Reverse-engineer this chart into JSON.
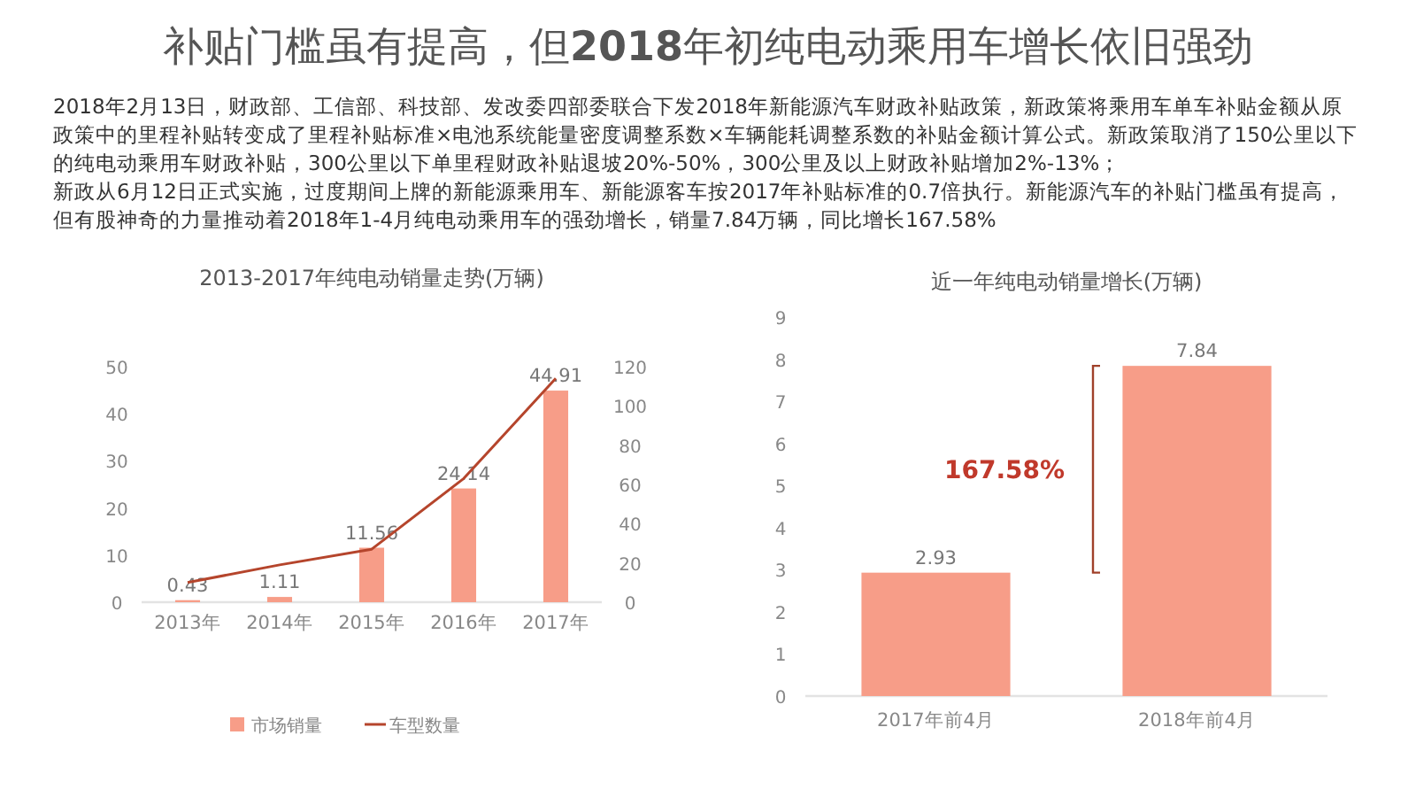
{
  "chart_data": [
    {
      "type": "other",
      "title": "补贴门槛虽有提高，但**2018**年初纯电动乘用车增长依旧强劲",
      "annotations": [
        "2018年2月13日，财政部、工信部、科技部、发改委四部委联合下发2018年新能源汽车财政补贴政策，新政策将乘用车单车补贴金额从原政策中的里程补贴转变成了里程补贴标准×电池系统能量密度调整系数×车辆能耗调整系数的补贴金额计算公式。新政策取消了150公里以下的纯电动乘用车财政补贴，300公里以下单里程财政补贴退坡20%-50%，300公里及以上财政补贴增加2%-13%；",
        "新政从6月12日正式实施，过度期间上牌的新能源乘用车、新能源客车按2017年补贴标准的0.7倍执行。新能源汽车的补贴门槛虽有提高，但有股神奇的力量推动着2018年1-4月纯电动乘用车的强劲增长，销量7.84万辆，同比增长167.58%"
      ]
    },
    {
      "type": "bar",
      "title": "2013-2017年纯电动销量走势(万辆)",
      "categories": [
        "2013年",
        "2014年",
        "2015年",
        "2016年",
        "2017年"
      ],
      "series": [
        {
          "name": "市场销量",
          "type": "bar",
          "color": "#f79d88",
          "values": [
            0.43,
            1.11,
            11.56,
            24.14,
            44.91
          ],
          "value_labels": [
            "0.43",
            "1.11",
            "11.56",
            "24.14",
            "44.91"
          ]
        },
        {
          "name": "车型数量",
          "type": "line",
          "axis": "y2",
          "color": "#b5452c",
          "values": [
            10,
            19,
            27,
            63,
            114
          ]
        }
      ],
      "ylim": [
        0,
        50
      ],
      "yticks": [
        0,
        10,
        20,
        30,
        40,
        50
      ],
      "y2lim": [
        0,
        120
      ],
      "y2ticks": [
        0,
        20,
        40,
        60,
        80,
        100,
        120
      ],
      "legend": "bottom",
      "grid": false,
      "marker": "none"
    },
    {
      "type": "bar",
      "title": "近一年纯电动销量增长(万辆)",
      "categories": [
        "2017年前4月",
        "2018年前4月"
      ],
      "values": [
        2.93,
        7.84
      ],
      "color": "#f79d88",
      "data_labels": true,
      "ylim": [
        0,
        9
      ],
      "yticks": [
        0,
        1,
        2,
        3,
        4,
        5,
        6,
        7,
        8,
        9
      ],
      "annotations": [
        "167.58%"
      ],
      "grid": false,
      "legend": false
    }
  ]
}
